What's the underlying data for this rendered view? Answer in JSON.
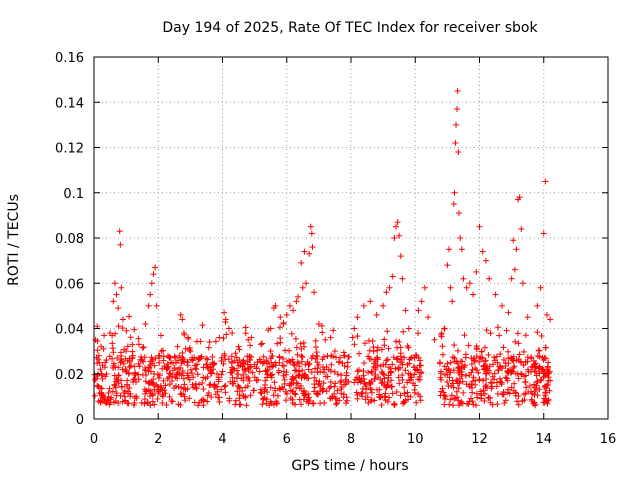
{
  "chart_data": {
    "type": "scatter",
    "title": "Day 194 of 2025, Rate Of TEC Index for receiver sbok",
    "xlabel": "GPS time / hours",
    "ylabel": "ROTI / TECUs",
    "xlim": [
      0,
      16
    ],
    "ylim": [
      0,
      0.16
    ],
    "x_ticks": [
      0,
      2,
      4,
      6,
      8,
      10,
      12,
      14,
      16
    ],
    "x_tick_labels": [
      "0",
      "2",
      "4",
      "6",
      "8",
      "10",
      "12",
      "14",
      "16"
    ],
    "y_ticks": [
      0,
      0.02,
      0.04,
      0.06,
      0.08,
      0.1,
      0.12,
      0.14,
      0.16
    ],
    "y_tick_labels": [
      "0",
      "0.02",
      "0.04",
      "0.06",
      "0.08",
      "0.1",
      "0.12",
      "0.14",
      "0.16"
    ],
    "grid": true,
    "marker": "+",
    "color": "#ff0000",
    "series": [
      {
        "name": "ROTI",
        "points": [
          [
            0.05,
            0.035
          ],
          [
            0.1,
            0.041
          ],
          [
            0.15,
            0.028
          ],
          [
            0.2,
            0.022
          ],
          [
            0.3,
            0.031
          ],
          [
            0.35,
            0.025
          ],
          [
            0.5,
            0.038
          ],
          [
            0.6,
            0.052
          ],
          [
            0.65,
            0.06
          ],
          [
            0.7,
            0.055
          ],
          [
            0.75,
            0.049
          ],
          [
            0.8,
            0.083
          ],
          [
            0.82,
            0.077
          ],
          [
            0.85,
            0.058
          ],
          [
            0.9,
            0.044
          ],
          [
            1.0,
            0.03
          ],
          [
            1.2,
            0.027
          ],
          [
            1.4,
            0.033
          ],
          [
            1.6,
            0.042
          ],
          [
            1.7,
            0.05
          ],
          [
            1.75,
            0.055
          ],
          [
            1.8,
            0.06
          ],
          [
            1.85,
            0.064
          ],
          [
            1.9,
            0.067
          ],
          [
            1.95,
            0.05
          ],
          [
            2.1,
            0.03
          ],
          [
            2.4,
            0.025
          ],
          [
            2.6,
            0.032
          ],
          [
            2.7,
            0.046
          ],
          [
            2.75,
            0.044
          ],
          [
            2.8,
            0.038
          ],
          [
            3.0,
            0.03
          ],
          [
            3.3,
            0.027
          ],
          [
            3.6,
            0.034
          ],
          [
            3.9,
            0.036
          ],
          [
            4.05,
            0.047
          ],
          [
            4.1,
            0.044
          ],
          [
            4.2,
            0.04
          ],
          [
            4.3,
            0.038
          ],
          [
            4.5,
            0.032
          ],
          [
            4.8,
            0.035
          ],
          [
            4.9,
            0.036
          ],
          [
            5.2,
            0.033
          ],
          [
            5.5,
            0.04
          ],
          [
            5.6,
            0.049
          ],
          [
            5.65,
            0.05
          ],
          [
            5.8,
            0.045
          ],
          [
            5.9,
            0.042
          ],
          [
            6.0,
            0.046
          ],
          [
            6.1,
            0.05
          ],
          [
            6.2,
            0.048
          ],
          [
            6.3,
            0.052
          ],
          [
            6.35,
            0.054
          ],
          [
            6.45,
            0.069
          ],
          [
            6.5,
            0.058
          ],
          [
            6.55,
            0.074
          ],
          [
            6.6,
            0.06
          ],
          [
            6.7,
            0.073
          ],
          [
            6.75,
            0.085
          ],
          [
            6.78,
            0.082
          ],
          [
            6.8,
            0.076
          ],
          [
            6.85,
            0.056
          ],
          [
            7.0,
            0.042
          ],
          [
            7.2,
            0.035
          ],
          [
            7.5,
            0.03
          ],
          [
            7.8,
            0.028
          ],
          [
            8.05,
            0.036
          ],
          [
            8.1,
            0.04
          ],
          [
            8.2,
            0.045
          ],
          [
            8.4,
            0.05
          ],
          [
            8.6,
            0.052
          ],
          [
            8.8,
            0.046
          ],
          [
            9.0,
            0.05
          ],
          [
            9.1,
            0.056
          ],
          [
            9.2,
            0.058
          ],
          [
            9.3,
            0.063
          ],
          [
            9.35,
            0.08
          ],
          [
            9.4,
            0.085
          ],
          [
            9.45,
            0.087
          ],
          [
            9.5,
            0.081
          ],
          [
            9.55,
            0.072
          ],
          [
            9.6,
            0.062
          ],
          [
            9.7,
            0.048
          ],
          [
            9.8,
            0.04
          ],
          [
            10.1,
            0.048
          ],
          [
            10.2,
            0.052
          ],
          [
            10.3,
            0.058
          ],
          [
            10.4,
            0.045
          ],
          [
            10.6,
            0.035
          ],
          [
            10.9,
            0.04
          ],
          [
            11.0,
            0.068
          ],
          [
            11.05,
            0.075
          ],
          [
            11.1,
            0.058
          ],
          [
            11.15,
            0.052
          ],
          [
            11.2,
            0.095
          ],
          [
            11.22,
            0.1
          ],
          [
            11.25,
            0.122
          ],
          [
            11.27,
            0.13
          ],
          [
            11.3,
            0.137
          ],
          [
            11.32,
            0.145
          ],
          [
            11.34,
            0.118
          ],
          [
            11.36,
            0.091
          ],
          [
            11.4,
            0.08
          ],
          [
            11.45,
            0.075
          ],
          [
            11.5,
            0.062
          ],
          [
            11.6,
            0.058
          ],
          [
            11.7,
            0.06
          ],
          [
            11.8,
            0.055
          ],
          [
            11.9,
            0.065
          ],
          [
            12.0,
            0.085
          ],
          [
            12.1,
            0.074
          ],
          [
            12.2,
            0.07
          ],
          [
            12.3,
            0.062
          ],
          [
            12.5,
            0.055
          ],
          [
            12.7,
            0.05
          ],
          [
            12.9,
            0.047
          ],
          [
            13.0,
            0.062
          ],
          [
            13.05,
            0.079
          ],
          [
            13.1,
            0.066
          ],
          [
            13.15,
            0.075
          ],
          [
            13.2,
            0.097
          ],
          [
            13.25,
            0.098
          ],
          [
            13.3,
            0.084
          ],
          [
            13.35,
            0.06
          ],
          [
            13.5,
            0.045
          ],
          [
            13.8,
            0.05
          ],
          [
            13.9,
            0.058
          ],
          [
            14.0,
            0.082
          ],
          [
            14.05,
            0.105
          ],
          [
            14.1,
            0.046
          ],
          [
            14.2,
            0.044
          ]
        ]
      }
    ]
  }
}
